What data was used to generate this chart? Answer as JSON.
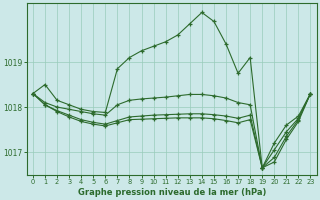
{
  "title": "Graphe pression niveau de la mer (hPa)",
  "bg_color": "#cce8e8",
  "grid_color": "#99ccbb",
  "line_color": "#2d6b2d",
  "xlim": [
    -0.5,
    23.5
  ],
  "ylim": [
    1016.5,
    1020.3
  ],
  "yticks": [
    1017,
    1018,
    1019
  ],
  "xticks": [
    0,
    1,
    2,
    3,
    4,
    5,
    6,
    7,
    8,
    9,
    10,
    11,
    12,
    13,
    14,
    15,
    16,
    17,
    18,
    19,
    20,
    21,
    22,
    23
  ],
  "series": [
    [
      1018.3,
      1018.5,
      1018.15,
      1018.05,
      1017.95,
      1017.9,
      1017.88,
      1018.85,
      1019.1,
      1019.25,
      1019.35,
      1019.45,
      1019.6,
      1019.85,
      1020.1,
      1019.9,
      1019.4,
      1018.75,
      1019.1,
      1016.65,
      1017.2,
      1017.6,
      1017.8,
      1018.3
    ],
    [
      1018.3,
      1018.1,
      1018.0,
      1017.95,
      1017.9,
      1017.85,
      1017.82,
      1018.05,
      1018.15,
      1018.18,
      1018.2,
      1018.22,
      1018.25,
      1018.28,
      1018.28,
      1018.25,
      1018.2,
      1018.1,
      1018.05,
      1016.65,
      1017.05,
      1017.45,
      1017.75,
      1018.3
    ],
    [
      1018.3,
      1018.05,
      1017.92,
      1017.82,
      1017.72,
      1017.66,
      1017.62,
      1017.7,
      1017.78,
      1017.8,
      1017.82,
      1017.83,
      1017.84,
      1017.85,
      1017.85,
      1017.83,
      1017.8,
      1017.75,
      1017.82,
      1016.65,
      1016.88,
      1017.35,
      1017.72,
      1018.3
    ],
    [
      1018.3,
      1018.05,
      1017.9,
      1017.78,
      1017.68,
      1017.62,
      1017.58,
      1017.65,
      1017.72,
      1017.73,
      1017.74,
      1017.75,
      1017.76,
      1017.76,
      1017.76,
      1017.74,
      1017.7,
      1017.65,
      1017.72,
      1016.65,
      1016.78,
      1017.28,
      1017.68,
      1018.3
    ]
  ]
}
